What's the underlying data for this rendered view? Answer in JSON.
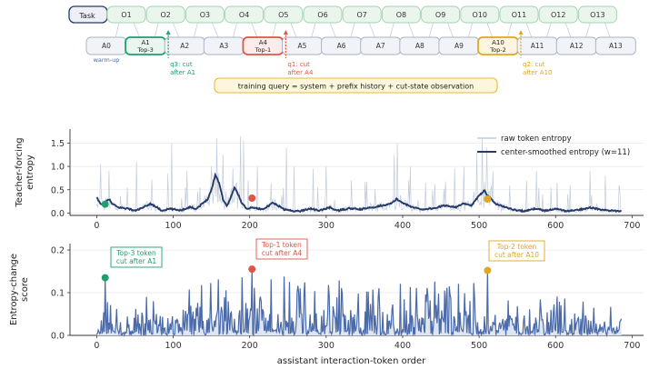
{
  "chart_data": [
    {
      "type": "diagram",
      "task_label": "Task",
      "observations": [
        "O1",
        "O2",
        "O3",
        "O4",
        "O5",
        "O6",
        "O7",
        "O8",
        "O9",
        "O10",
        "O11",
        "O12",
        "O13"
      ],
      "actions": [
        {
          "label": "A0",
          "sub": ""
        },
        {
          "label": "A1",
          "sub": "Top-3"
        },
        {
          "label": "A2",
          "sub": ""
        },
        {
          "label": "A3",
          "sub": ""
        },
        {
          "label": "A4",
          "sub": "Top-1"
        },
        {
          "label": "A5",
          "sub": ""
        },
        {
          "label": "A6",
          "sub": ""
        },
        {
          "label": "A7",
          "sub": ""
        },
        {
          "label": "A8",
          "sub": ""
        },
        {
          "label": "A9",
          "sub": ""
        },
        {
          "label": "A10",
          "sub": "Top-2"
        },
        {
          "label": "A11",
          "sub": ""
        },
        {
          "label": "A12",
          "sub": ""
        },
        {
          "label": "A13",
          "sub": ""
        }
      ],
      "warmup_label": "warm-up",
      "cuts": [
        {
          "after_action": "A1",
          "line1": "q3: cut",
          "line2": "after A1",
          "color": "#1f9e6e"
        },
        {
          "after_action": "A4",
          "line1": "q1: cut",
          "line2": "after A4",
          "color": "#e05545"
        },
        {
          "after_action": "A10",
          "line1": "q2: cut",
          "line2": "after A10",
          "color": "#e0a81f"
        }
      ],
      "query_text": "training query = system + prefix history + cut-state observation"
    },
    {
      "type": "line",
      "ylabel": "Teacher-forcing entropy",
      "ylim": [
        -0.05,
        1.8
      ],
      "yticks": [
        0.0,
        0.5,
        1.0,
        1.5
      ],
      "xlim": [
        -35,
        715
      ],
      "xticks": [
        0,
        100,
        200,
        300,
        400,
        500,
        600,
        700
      ],
      "legend": [
        "raw token entropy",
        "center-smoothed entropy (w=11)"
      ],
      "legend_position": "upper right",
      "n_tokens": 687,
      "smoothed_control": [
        [
          0,
          0.33
        ],
        [
          4,
          0.22
        ],
        [
          8,
          0.18
        ],
        [
          12,
          0.24
        ],
        [
          16,
          0.3
        ],
        [
          20,
          0.2
        ],
        [
          28,
          0.12
        ],
        [
          40,
          0.1
        ],
        [
          50,
          0.05
        ],
        [
          60,
          0.11
        ],
        [
          70,
          0.2
        ],
        [
          78,
          0.13
        ],
        [
          85,
          0.05
        ],
        [
          95,
          0.09
        ],
        [
          110,
          0.06
        ],
        [
          122,
          0.13
        ],
        [
          130,
          0.09
        ],
        [
          138,
          0.2
        ],
        [
          145,
          0.3
        ],
        [
          150,
          0.5
        ],
        [
          155,
          0.82
        ],
        [
          160,
          0.65
        ],
        [
          165,
          0.3
        ],
        [
          170,
          0.15
        ],
        [
          175,
          0.32
        ],
        [
          180,
          0.55
        ],
        [
          185,
          0.4
        ],
        [
          190,
          0.2
        ],
        [
          196,
          0.1
        ],
        [
          205,
          0.12
        ],
        [
          215,
          0.08
        ],
        [
          225,
          0.15
        ],
        [
          230,
          0.22
        ],
        [
          238,
          0.15
        ],
        [
          245,
          0.08
        ],
        [
          255,
          0.05
        ],
        [
          265,
          0.04
        ],
        [
          280,
          0.1
        ],
        [
          290,
          0.05
        ],
        [
          305,
          0.12
        ],
        [
          315,
          0.05
        ],
        [
          330,
          0.1
        ],
        [
          345,
          0.08
        ],
        [
          360,
          0.12
        ],
        [
          375,
          0.17
        ],
        [
          385,
          0.2
        ],
        [
          392,
          0.3
        ],
        [
          398,
          0.24
        ],
        [
          410,
          0.14
        ],
        [
          425,
          0.08
        ],
        [
          440,
          0.1
        ],
        [
          455,
          0.16
        ],
        [
          470,
          0.13
        ],
        [
          480,
          0.2
        ],
        [
          490,
          0.16
        ],
        [
          498,
          0.33
        ],
        [
          503,
          0.42
        ],
        [
          507,
          0.5
        ],
        [
          511,
          0.37
        ],
        [
          515,
          0.32
        ],
        [
          522,
          0.2
        ],
        [
          530,
          0.15
        ],
        [
          545,
          0.07
        ],
        [
          560,
          0.04
        ],
        [
          575,
          0.1
        ],
        [
          585,
          0.05
        ],
        [
          600,
          0.09
        ],
        [
          615,
          0.04
        ],
        [
          630,
          0.07
        ],
        [
          645,
          0.12
        ],
        [
          660,
          0.07
        ],
        [
          672,
          0.05
        ],
        [
          687,
          0.04
        ]
      ],
      "raw_peaks": [
        [
          5,
          1.05
        ],
        [
          16,
          0.9
        ],
        [
          40,
          0.55
        ],
        [
          52,
          1.1
        ],
        [
          93,
          0.85
        ],
        [
          98,
          1.5
        ],
        [
          118,
          0.9
        ],
        [
          150,
          1.0
        ],
        [
          157,
          1.6
        ],
        [
          165,
          1.25
        ],
        [
          178,
          0.95
        ],
        [
          188,
          1.65
        ],
        [
          192,
          1.55
        ],
        [
          198,
          0.7
        ],
        [
          210,
          1.0
        ],
        [
          248,
          1.4
        ],
        [
          258,
          1.0
        ],
        [
          283,
          0.95
        ],
        [
          300,
          1.0
        ],
        [
          333,
          0.7
        ],
        [
          389,
          1.25
        ],
        [
          393,
          1.5
        ],
        [
          410,
          1.0
        ],
        [
          430,
          0.65
        ],
        [
          468,
          0.95
        ],
        [
          480,
          1.0
        ],
        [
          497,
          1.3
        ],
        [
          504,
          1.6
        ],
        [
          510,
          1.4
        ],
        [
          518,
          0.9
        ],
        [
          562,
          0.7
        ],
        [
          575,
          0.9
        ],
        [
          602,
          0.65
        ],
        [
          645,
          0.9
        ],
        [
          665,
          0.8
        ],
        [
          683,
          0.6
        ]
      ],
      "highlights": [
        {
          "x": 11,
          "y": 0.19,
          "color": "#1f9e6e"
        },
        {
          "x": 203,
          "y": 0.32,
          "color": "#e05545"
        },
        {
          "x": 511,
          "y": 0.3,
          "color": "#e0a81f"
        }
      ]
    },
    {
      "type": "line",
      "ylabel": "Entropy-change score",
      "xlabel": "assistant interaction-token order",
      "ylim": [
        0,
        0.215
      ],
      "yticks": [
        0.0,
        0.1,
        0.2
      ],
      "xlim": [
        -35,
        715
      ],
      "xticks": [
        0,
        100,
        200,
        300,
        400,
        500,
        600,
        700
      ],
      "n_tokens": 687,
      "max_control": [
        [
          0,
          0.01
        ],
        [
          10,
          0.06
        ],
        [
          12,
          0.13
        ],
        [
          15,
          0.08
        ],
        [
          25,
          0.06
        ],
        [
          40,
          0.1
        ],
        [
          55,
          0.07
        ],
        [
          80,
          0.12
        ],
        [
          100,
          0.08
        ],
        [
          120,
          0.13
        ],
        [
          140,
          0.12
        ],
        [
          160,
          0.14
        ],
        [
          180,
          0.13
        ],
        [
          200,
          0.15
        ],
        [
          204,
          0.16
        ],
        [
          220,
          0.14
        ],
        [
          240,
          0.15
        ],
        [
          260,
          0.12
        ],
        [
          280,
          0.13
        ],
        [
          300,
          0.12
        ],
        [
          320,
          0.14
        ],
        [
          340,
          0.13
        ],
        [
          360,
          0.12
        ],
        [
          380,
          0.13
        ],
        [
          400,
          0.14
        ],
        [
          420,
          0.12
        ],
        [
          440,
          0.13
        ],
        [
          460,
          0.12
        ],
        [
          480,
          0.13
        ],
        [
          500,
          0.12
        ],
        [
          511,
          0.15
        ],
        [
          520,
          0.1
        ],
        [
          540,
          0.11
        ],
        [
          560,
          0.09
        ],
        [
          580,
          0.1
        ],
        [
          600,
          0.09
        ],
        [
          620,
          0.1
        ],
        [
          640,
          0.09
        ],
        [
          660,
          0.08
        ],
        [
          680,
          0.06
        ],
        [
          687,
          0.04
        ]
      ],
      "highlights": [
        {
          "x": 11,
          "y": 0.135,
          "color": "#1f9e6e",
          "line1": "Top-3 token",
          "line2": "cut after A1"
        },
        {
          "x": 203,
          "y": 0.155,
          "color": "#e05545",
          "line1": "Top-1 token",
          "line2": "cut after A4"
        },
        {
          "x": 511,
          "y": 0.152,
          "color": "#e0a81f",
          "line1": "Top-2 token",
          "line2": "cut after A10"
        }
      ]
    }
  ],
  "colors": {
    "navy": "#243a6b",
    "raw_line": "#c3ccdc",
    "score_line": "#4a6aaa",
    "score_fill": "#dfe6f3",
    "obs_fill": "#eaf6ed",
    "obs_stroke": "#9fd3ae",
    "act_fill": "#f1f3f8",
    "act_stroke": "#a7b0c3",
    "green": "#1f9e6e",
    "red": "#e05545",
    "gold": "#e0a81f",
    "query_fill": "#fdf6dd",
    "query_stroke": "#e6b83a",
    "axis": "#333333",
    "grid": "#e3e3e3"
  }
}
